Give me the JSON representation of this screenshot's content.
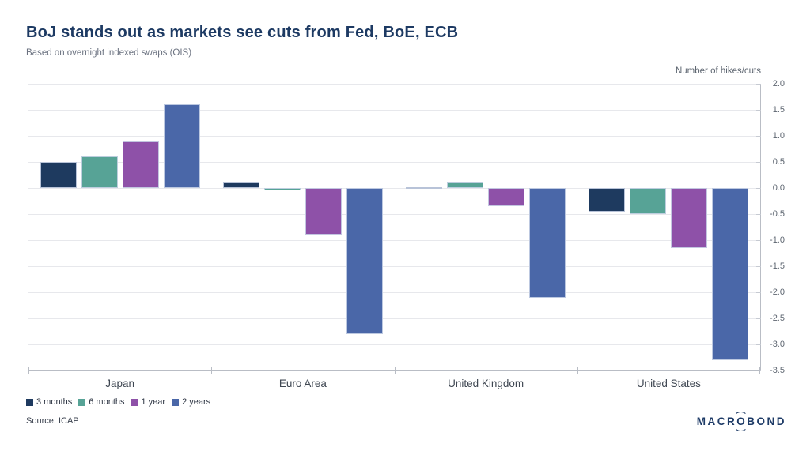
{
  "header": {
    "title": "BoJ stands out as markets see cuts from Fed, BoE, ECB",
    "subtitle": "Based on overnight indexed swaps (OIS)"
  },
  "chart_data": {
    "type": "bar",
    "title": "BoJ stands out as markets see cuts from Fed, BoE, ECB",
    "subtitle": "Based on overnight indexed swaps (OIS)",
    "axis_label": "Number of hikes/cuts",
    "categories": [
      "Japan",
      "Euro Area",
      "United Kingdom",
      "United States"
    ],
    "series": [
      {
        "name": "3 months",
        "color": "#1e3a5f",
        "values": [
          0.5,
          0.1,
          0.0,
          -0.45
        ]
      },
      {
        "name": "6 months",
        "color": "#57a396",
        "values": [
          0.6,
          -0.05,
          0.1,
          -0.5
        ]
      },
      {
        "name": "1 year",
        "color": "#8e51a8",
        "values": [
          0.9,
          -0.9,
          -0.35,
          -1.15
        ]
      },
      {
        "name": "2 years",
        "color": "#4a67a8",
        "values": [
          1.6,
          -2.8,
          -2.1,
          -3.3
        ]
      }
    ],
    "ylim": [
      -3.5,
      2.0
    ],
    "ytick_step": 0.5,
    "grid": "horizontal",
    "legend_position": "bottom-left"
  },
  "footer": {
    "source": "Source: ICAP"
  },
  "logo": {
    "prefix": "MACR",
    "o": "O",
    "suffix": "BOND"
  },
  "colors": {
    "title_text": "#1d3a63",
    "muted_text": "#6b7280",
    "tick_text": "#5d6570",
    "axis_line": "#b9bdc5",
    "gridline": "#e7e8ec"
  }
}
